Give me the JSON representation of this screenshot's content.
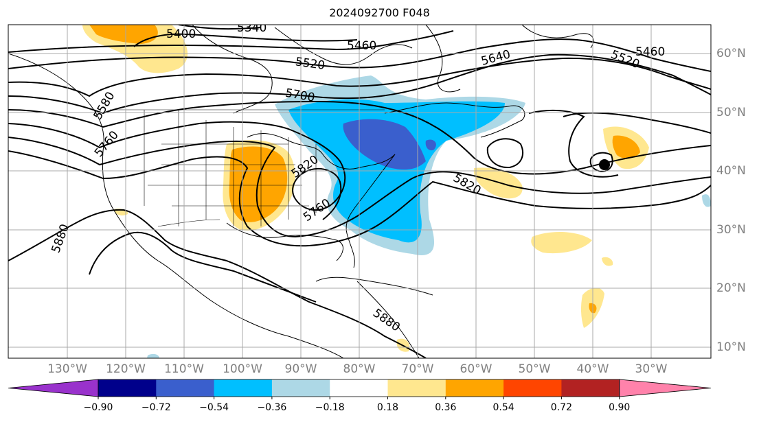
{
  "title": "2024092700 F048",
  "map": {
    "projection": "plate carree",
    "lon_labels": [
      "130°W",
      "120°W",
      "110°W",
      "100°W",
      "90°W",
      "80°W",
      "70°W",
      "60°W",
      "50°W",
      "40°W",
      "30°W"
    ],
    "lat_labels": [
      "60°N",
      "50°N",
      "40°N",
      "30°N",
      "20°N",
      "10°N"
    ],
    "gridlines": true,
    "contour_labels": [
      "5340",
      "5400",
      "5460",
      "5460",
      "5520",
      "5520",
      "5580",
      "5640",
      "5700",
      "5760",
      "5760",
      "5820",
      "5820",
      "5880",
      "5880"
    ],
    "marker": "black dot"
  },
  "colorbar": {
    "ticks": [
      "−0.90",
      "−0.72",
      "−0.54",
      "−0.36",
      "−0.18",
      "0.18",
      "0.36",
      "0.54",
      "0.72",
      "0.90"
    ],
    "colors": [
      "#9932cc",
      "#00008b",
      "#3a5fcd",
      "#00bfff",
      "#add8e6",
      "#ffffff",
      "#ffe78f",
      "#ffa500",
      "#ff4500",
      "#b22222",
      "#ff82ab"
    ],
    "extend": "both"
  }
}
